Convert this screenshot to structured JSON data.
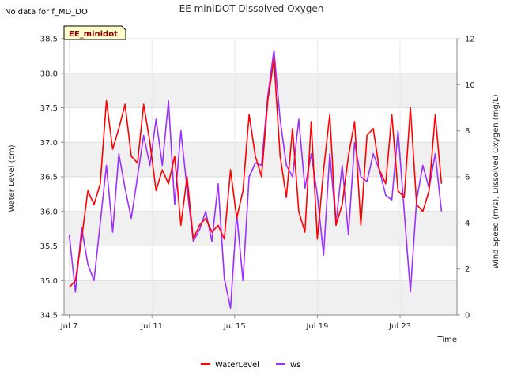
{
  "chart_data": {
    "type": "line",
    "title": "EE miniDOT Dissolved Oxygen",
    "nodata_note": "No data for f_MD_DO",
    "site_label": "EE_minidot",
    "xlabel": "Time",
    "ylabel_left": "Water Level (cm)",
    "ylabel_right": "Wind Speed (m/s), Dissolved Oxygen (mg/L)",
    "x_range_days": [
      6.75,
      25.75
    ],
    "x_ticks": [
      {
        "day": 7,
        "label": "Jul 7"
      },
      {
        "day": 11,
        "label": "Jul 11"
      },
      {
        "day": 15,
        "label": "Jul 15"
      },
      {
        "day": 19,
        "label": "Jul 19"
      },
      {
        "day": 23,
        "label": "Jul 23"
      }
    ],
    "ylim_left": [
      34.5,
      38.5
    ],
    "y_ticks_left": [
      "34.5",
      "35.0",
      "35.5",
      "36.0",
      "36.5",
      "37.0",
      "37.5",
      "38.0",
      "38.5"
    ],
    "ylim_right": [
      0,
      12
    ],
    "y_ticks_right": [
      "0",
      "2",
      "4",
      "6",
      "8",
      "10",
      "12"
    ],
    "grid": true,
    "legend_position": "bottom-center",
    "colors": {
      "WaterLevel": "#ff0000",
      "ws": "#9b30ff",
      "band": "#f0f0f0",
      "badge_bg": "#ffffcc"
    },
    "series": [
      {
        "name": "WaterLevel",
        "axis": "left",
        "x": [
          7.0,
          7.3,
          7.6,
          7.9,
          8.2,
          8.5,
          8.8,
          9.1,
          9.4,
          9.7,
          10.0,
          10.3,
          10.6,
          10.9,
          11.2,
          11.5,
          11.8,
          12.1,
          12.4,
          12.7,
          13.0,
          13.3,
          13.6,
          13.9,
          14.2,
          14.5,
          14.8,
          15.1,
          15.4,
          15.7,
          16.0,
          16.3,
          16.6,
          16.9,
          17.2,
          17.5,
          17.8,
          18.1,
          18.4,
          18.7,
          19.0,
          19.3,
          19.6,
          19.9,
          20.2,
          20.5,
          20.8,
          21.1,
          21.4,
          21.7,
          22.0,
          22.3,
          22.6,
          22.9,
          23.2,
          23.5,
          23.8,
          24.1,
          24.4,
          24.7,
          25.0
        ],
        "values": [
          34.9,
          35.0,
          35.6,
          36.3,
          36.1,
          36.4,
          37.6,
          36.9,
          37.2,
          37.55,
          36.8,
          36.7,
          37.55,
          37.0,
          36.3,
          36.6,
          36.4,
          36.8,
          35.8,
          36.5,
          35.6,
          35.8,
          35.9,
          35.7,
          35.8,
          35.6,
          36.6,
          35.9,
          36.3,
          37.4,
          36.8,
          36.5,
          37.6,
          38.2,
          36.8,
          36.2,
          37.2,
          36.0,
          35.7,
          37.3,
          35.6,
          36.6,
          37.4,
          35.8,
          36.1,
          36.8,
          37.3,
          35.8,
          37.1,
          37.2,
          36.6,
          36.4,
          37.4,
          36.3,
          36.2,
          37.5,
          36.1,
          36.0,
          36.3,
          37.4,
          36.4
        ]
      },
      {
        "name": "ws",
        "axis": "right",
        "x": [
          7.0,
          7.3,
          7.6,
          7.9,
          8.2,
          8.5,
          8.8,
          9.1,
          9.4,
          9.7,
          10.0,
          10.3,
          10.6,
          10.9,
          11.2,
          11.5,
          11.8,
          12.1,
          12.4,
          12.7,
          13.0,
          13.3,
          13.6,
          13.9,
          14.2,
          14.5,
          14.8,
          15.1,
          15.4,
          15.7,
          16.0,
          16.3,
          16.6,
          16.9,
          17.2,
          17.5,
          17.8,
          18.1,
          18.4,
          18.7,
          19.0,
          19.3,
          19.6,
          19.9,
          20.2,
          20.5,
          20.8,
          21.1,
          21.4,
          21.7,
          22.0,
          22.3,
          22.6,
          22.9,
          23.2,
          23.5,
          23.8,
          24.1,
          24.4,
          24.7,
          25.0
        ],
        "values": [
          3.5,
          1.0,
          3.8,
          2.2,
          1.5,
          4.0,
          6.5,
          3.6,
          7.0,
          5.5,
          4.2,
          6.0,
          7.8,
          6.5,
          8.5,
          6.5,
          9.3,
          4.8,
          8.0,
          5.5,
          3.2,
          3.7,
          4.5,
          3.2,
          5.7,
          1.6,
          0.3,
          4.4,
          1.5,
          6.0,
          6.6,
          6.5,
          9.5,
          11.5,
          8.5,
          6.5,
          6.0,
          8.5,
          5.5,
          7.0,
          5.2,
          2.6,
          7.0,
          4.0,
          6.5,
          3.5,
          7.5,
          6.0,
          5.8,
          7.0,
          6.3,
          5.2,
          5.0,
          8.0,
          4.5,
          1.0,
          5.0,
          6.5,
          5.5,
          7.0,
          4.5
        ]
      }
    ]
  }
}
